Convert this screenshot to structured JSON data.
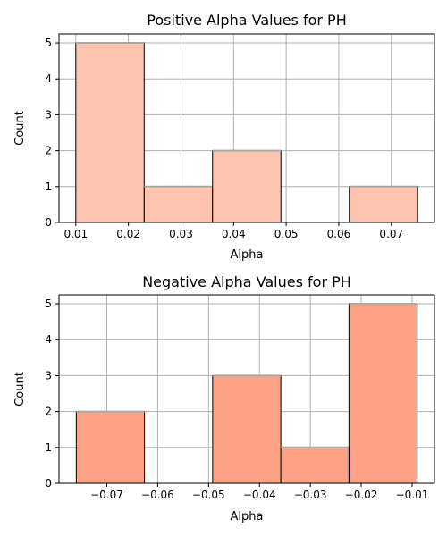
{
  "colors": {
    "background": "#ffffff",
    "grid": "#b0b0b0",
    "axis": "#000000",
    "bar_edge": "#000000",
    "bar_edge_top": "#a9a9a9"
  },
  "chart_data": [
    {
      "type": "bar",
      "subtype": "histogram",
      "title": "Positive Alpha Values for PH",
      "xlabel": "Alpha",
      "ylabel": "Count",
      "bin_edges": [
        0.01,
        0.023,
        0.036,
        0.049,
        0.062,
        0.075
      ],
      "values": [
        5,
        1,
        2,
        0,
        1
      ],
      "bar_color": "#fdc4b0",
      "xlim": [
        0.0068,
        0.0782
      ],
      "ylim": [
        0,
        5.25
      ],
      "xticks": [
        0.01,
        0.02,
        0.03,
        0.04,
        0.05,
        0.06,
        0.07
      ],
      "xtick_labels": [
        "0.01",
        "0.02",
        "0.03",
        "0.04",
        "0.05",
        "0.06",
        "0.07"
      ],
      "yticks": [
        0,
        1,
        2,
        3,
        4,
        5
      ],
      "ytick_labels": [
        "0",
        "1",
        "2",
        "3",
        "4",
        "5"
      ],
      "grid": true
    },
    {
      "type": "bar",
      "subtype": "histogram",
      "title": "Negative Alpha Values for PH",
      "xlabel": "Alpha",
      "ylabel": "Count",
      "bin_edges": [
        -0.076,
        -0.0626,
        -0.0492,
        -0.0358,
        -0.0224,
        -0.009
      ],
      "values": [
        2,
        0,
        3,
        1,
        5
      ],
      "bar_color": "#fca385",
      "xlim": [
        -0.0794,
        -0.0056
      ],
      "ylim": [
        0,
        5.25
      ],
      "xticks": [
        -0.07,
        -0.06,
        -0.05,
        -0.04,
        -0.03,
        -0.02,
        -0.01
      ],
      "xtick_labels": [
        "−0.07",
        "−0.06",
        "−0.05",
        "−0.04",
        "−0.03",
        "−0.02",
        "−0.01"
      ],
      "yticks": [
        0,
        1,
        2,
        3,
        4,
        5
      ],
      "ytick_labels": [
        "0",
        "1",
        "2",
        "3",
        "4",
        "5"
      ],
      "grid": true
    }
  ]
}
